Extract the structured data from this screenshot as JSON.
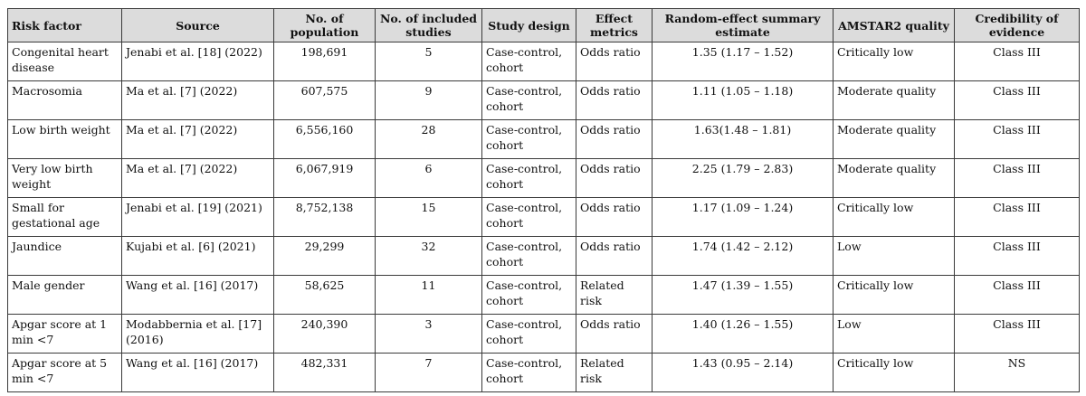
{
  "headers": [
    "Risk factor",
    "Source",
    "No. of population",
    "No. of included studies",
    "Study design",
    "Effect metrics",
    "Random-effect summary estimate",
    "AMSTAR2 quality",
    "Credibility of evidence"
  ],
  "rows": [
    {
      "risk_factor": "Congenital heart disease",
      "source": "Jenabi et al. [18] (2022)",
      "population": "198,691",
      "studies": "5",
      "design": "Case-control, cohort",
      "metric": "Odds ratio",
      "estimate": "1.35 (1.17 – 1.52)",
      "amstar": "Critically low",
      "credibility": "Class III"
    },
    {
      "risk_factor": "Macrosomia",
      "source": "Ma et al. [7] (2022)",
      "population": "607,575",
      "studies": "9",
      "design": "Case-control, cohort",
      "metric": "Odds ratio",
      "estimate": "1.11 (1.05 – 1.18)",
      "amstar": "Moderate quality",
      "credibility": "Class III"
    },
    {
      "risk_factor": "Low birth weight",
      "source": "Ma et al. [7] (2022)",
      "population": "6,556,160",
      "studies": "28",
      "design": "Case-control, cohort",
      "metric": "Odds ratio",
      "estimate": "1.63(1.48 – 1.81)",
      "amstar": "Moderate quality",
      "credibility": "Class III"
    },
    {
      "risk_factor": "Very low birth weight",
      "source": "Ma et al. [7] (2022)",
      "population": "6,067,919",
      "studies": "6",
      "design": "Case-control, cohort",
      "metric": "Odds ratio",
      "estimate": "2.25 (1.79 – 2.83)",
      "amstar": "Moderate quality",
      "credibility": "Class III"
    },
    {
      "risk_factor": "Small for gestational age",
      "source": "Jenabi et al. [19] (2021)",
      "population": "8,752,138",
      "studies": "15",
      "design": "Case-control, cohort",
      "metric": "Odds ratio",
      "estimate": "1.17 (1.09 – 1.24)",
      "amstar": "Critically low",
      "credibility": "Class III"
    },
    {
      "risk_factor": "Jaundice",
      "source": "Kujabi et al. [6] (2021)",
      "population": "29,299",
      "studies": "32",
      "design": "Case-control, cohort",
      "metric": "Odds ratio",
      "estimate": "1.74 (1.42 – 2.12)",
      "amstar": "Low",
      "credibility": "Class III"
    },
    {
      "risk_factor": "Male gender",
      "source": "Wang et al. [16] (2017)",
      "population": "58,625",
      "studies": "11",
      "design": "Case-control, cohort",
      "metric": "Related risk",
      "estimate": "1.47 (1.39 – 1.55)",
      "amstar": "Critically low",
      "credibility": "Class III"
    },
    {
      "risk_factor": "Apgar score at 1 min <7",
      "source": "Modabbernia et al. [17] (2016)",
      "population": "240,390",
      "studies": "3",
      "design": "Case-control, cohort",
      "metric": "Odds ratio",
      "estimate": "1.40 (1.26 – 1.55)",
      "amstar": "Low",
      "credibility": "Class III"
    },
    {
      "risk_factor": "Apgar score at 5 min <7",
      "source": "Wang et al. [16] (2017)",
      "population": "482,331",
      "studies": "7",
      "design": "Case-control, cohort",
      "metric": "Related risk",
      "estimate": "1.43 (0.95 – 2.14)",
      "amstar": "Critically low",
      "credibility": "NS"
    }
  ]
}
